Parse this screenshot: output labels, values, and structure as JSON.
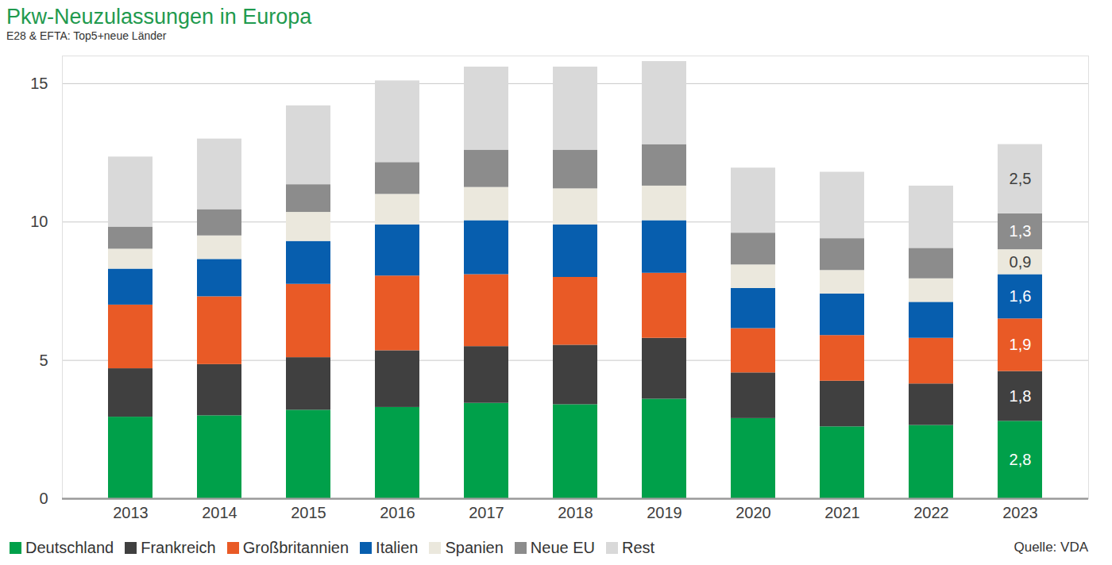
{
  "chart_data": {
    "type": "bar",
    "title": "Pkw-Neuzulassungen in Europa",
    "subtitle": "E28 & EFTA: Top5+neue Länder",
    "source": "Quelle: VDA",
    "categories": [
      "2013",
      "2014",
      "2015",
      "2016",
      "2017",
      "2018",
      "2019",
      "2020",
      "2021",
      "2022",
      "2023"
    ],
    "series": [
      {
        "name": "Deutschland",
        "color": "#00a04a",
        "values": [
          2.95,
          3.0,
          3.2,
          3.3,
          3.45,
          3.4,
          3.6,
          2.9,
          2.6,
          2.65,
          2.8
        ],
        "value_labels": [
          null,
          null,
          null,
          null,
          null,
          null,
          null,
          null,
          null,
          null,
          "2,8"
        ]
      },
      {
        "name": "Frankreich",
        "color": "#404040",
        "values": [
          1.75,
          1.85,
          1.9,
          2.05,
          2.05,
          2.15,
          2.2,
          1.65,
          1.65,
          1.5,
          1.8
        ],
        "value_labels": [
          null,
          null,
          null,
          null,
          null,
          null,
          null,
          null,
          null,
          null,
          "1,8"
        ]
      },
      {
        "name": "Großbritannien",
        "color": "#e95a26",
        "values": [
          2.3,
          2.45,
          2.65,
          2.7,
          2.6,
          2.45,
          2.35,
          1.6,
          1.65,
          1.65,
          1.9
        ],
        "value_labels": [
          null,
          null,
          null,
          null,
          null,
          null,
          null,
          null,
          null,
          null,
          "1,9"
        ]
      },
      {
        "name": "Italien",
        "color": "#075eae",
        "values": [
          1.3,
          1.35,
          1.55,
          1.85,
          1.95,
          1.9,
          1.9,
          1.45,
          1.5,
          1.3,
          1.6
        ],
        "value_labels": [
          null,
          null,
          null,
          null,
          null,
          null,
          null,
          null,
          null,
          null,
          "1,6"
        ]
      },
      {
        "name": "Spanien",
        "color": "#ebe8dd",
        "values": [
          0.72,
          0.85,
          1.05,
          1.1,
          1.2,
          1.3,
          1.25,
          0.85,
          0.85,
          0.85,
          0.9
        ],
        "value_labels": [
          null,
          null,
          null,
          null,
          null,
          null,
          null,
          null,
          null,
          null,
          "0,9"
        ]
      },
      {
        "name": "Neue EU",
        "color": "#8c8c8c",
        "values": [
          0.8,
          0.95,
          1.0,
          1.15,
          1.35,
          1.4,
          1.5,
          1.15,
          1.15,
          1.1,
          1.3
        ],
        "value_labels": [
          null,
          null,
          null,
          null,
          null,
          null,
          null,
          null,
          null,
          null,
          "1,3"
        ]
      },
      {
        "name": "Rest",
        "color": "#d9d9d9",
        "values": [
          2.53,
          2.55,
          2.85,
          2.95,
          3.0,
          3.0,
          3.0,
          2.35,
          2.4,
          2.25,
          2.5
        ],
        "value_labels": [
          null,
          null,
          null,
          null,
          null,
          null,
          null,
          null,
          null,
          null,
          "2,5"
        ]
      }
    ],
    "ylim": [
      0,
      16
    ],
    "yticks": [
      0,
      5,
      10,
      15
    ],
    "grid": true,
    "stacked": true,
    "data_labels": true,
    "legend": "bottom"
  }
}
